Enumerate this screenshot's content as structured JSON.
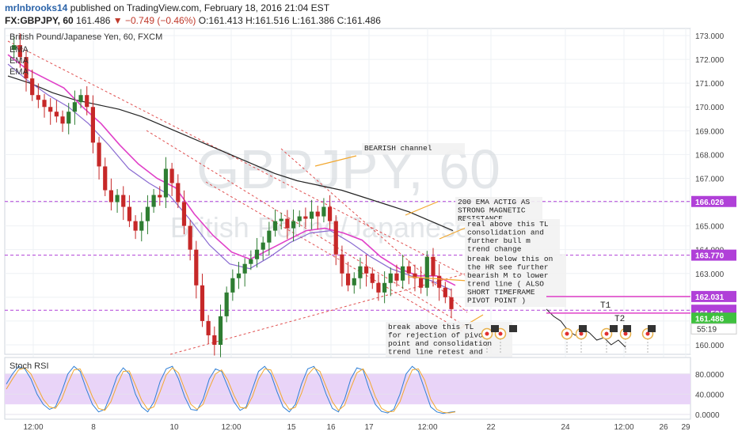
{
  "header": {
    "user": "mrlnbrooks14",
    "published": "published on TradingView.com, February 18, 2016 21:04 EST",
    "symbol": "FX:GBPJPY, 60",
    "last": "161.486",
    "change": "▼ −0.749 (−0.46%)",
    "open": "O:161.413",
    "high": "H:161.516",
    "low": "L:161.386",
    "close": "C:161.486"
  },
  "chart_title": "British Pound/Japanese Yen, 60, FXCM",
  "ema_labels": [
    "EMA",
    "EMA",
    "EMA"
  ],
  "watermark": {
    "line1": "GBPJPY, 60",
    "line2": "British Pound/Japanese Yen"
  },
  "colors": {
    "up": "#2e7d32",
    "down": "#c62828",
    "ema_black": "#222222",
    "ema_magenta": "#e040c8",
    "ema_purple": "#8a6bd1",
    "level": "#b040d8",
    "trendline": "#e05050",
    "arrow": "#f2a830",
    "price_tag": "#3ec03e",
    "rsi_band": "#e9d4f8"
  },
  "chart_data": [
    {
      "type": "candlestick",
      "title": "British Pound/Japanese Yen, 60, FXCM",
      "x_ticks": [
        "12:00",
        "8",
        "10",
        "12:00",
        "15",
        "16",
        "17",
        "12:00",
        "22",
        "24",
        "12:00",
        "26",
        "29"
      ],
      "y_ticks": [
        173.0,
        172.0,
        171.0,
        170.0,
        169.0,
        168.0,
        167.0,
        166.0,
        165.0,
        164.0,
        163.0,
        162.0,
        161.0,
        160.0
      ],
      "ylim": [
        159.6,
        173.3
      ],
      "grid": true,
      "levels": [
        {
          "value": 166.026,
          "label": "166.026"
        },
        {
          "value": 163.77,
          "label": "163.770"
        },
        {
          "value": 161.455,
          "label": "161.455"
        }
      ],
      "price_tags": [
        {
          "value": 162.031,
          "label": "162.031"
        },
        {
          "value": 161.531,
          "label": "161.531"
        },
        {
          "value": 161.486,
          "label": "161.486",
          "countdown": "55:19"
        }
      ],
      "targets": [
        {
          "label": "T1",
          "value": 161.9
        },
        {
          "label": "T2",
          "value": 161.4
        }
      ],
      "price_path": [
        172.4,
        172.6,
        172.1,
        171.2,
        170.5,
        170.3,
        170.0,
        169.8,
        169.6,
        169.3,
        169.8,
        170.2,
        170.5,
        170.0,
        168.5,
        167.5,
        166.5,
        166.0,
        166.3,
        165.8,
        165.2,
        164.8,
        165.2,
        165.8,
        166.3,
        166.2,
        167.4,
        166.8,
        166.0,
        165.0,
        164.0,
        162.5,
        161.0,
        160.4,
        160.0,
        161.2,
        162.2,
        162.8,
        163.0,
        163.4,
        163.6,
        164.0,
        164.3,
        164.8,
        165.2,
        165.3,
        164.9,
        165.2,
        165.4,
        165.3,
        165.6,
        165.4,
        165.8,
        165.2,
        163.8,
        163.0,
        162.5,
        162.8,
        163.3,
        163.0,
        162.6,
        162.2,
        162.6,
        163.0,
        162.7,
        163.3,
        163.0,
        162.8,
        162.4,
        163.7,
        162.9,
        162.4,
        162.0,
        161.5
      ],
      "ema_200": [
        171.3,
        171.0,
        170.6,
        170.3,
        170.1,
        169.9,
        169.6,
        169.2,
        168.8,
        168.4,
        168.0,
        167.6,
        167.2,
        166.9,
        166.7,
        166.5,
        166.2,
        165.9,
        165.6,
        165.2,
        164.8
      ],
      "ema_fast": [
        172.2,
        171.6,
        171.2,
        170.8,
        170.0,
        169.3,
        168.4,
        167.6,
        167.0,
        166.6,
        165.5,
        164.6,
        163.9,
        163.6,
        164.0,
        164.4,
        164.8,
        164.9,
        164.7,
        164.4,
        163.7,
        163.2,
        162.9,
        162.9,
        162.5
      ],
      "ema_mid": [
        171.8,
        171.1,
        170.5,
        170.0,
        169.3,
        168.4,
        167.4,
        166.8,
        166.3,
        165.3,
        164.2,
        163.4,
        163.2,
        163.7,
        164.3,
        164.7,
        164.8,
        164.3,
        163.7,
        163.2,
        162.9,
        162.7,
        162.3
      ],
      "projection": [
        161.5,
        161.2,
        161.0,
        160.6,
        160.4,
        160.7,
        160.5,
        160.2,
        160.3,
        160.0,
        160.2,
        159.9
      ]
    },
    {
      "type": "line",
      "title": "Stoch RSI",
      "y_ticks": [
        "80.0000",
        "40.0000",
        "0.0000"
      ],
      "ylim": [
        0,
        100
      ],
      "band": [
        20,
        80
      ],
      "series": [
        {
          "values": [
            60,
            80,
            95,
            90,
            70,
            40,
            20,
            10,
            15,
            45,
            80,
            95,
            85,
            50,
            20,
            5,
            10,
            40,
            75,
            92,
            80,
            40,
            15,
            5,
            25,
            65,
            90,
            95,
            70,
            35,
            10,
            8,
            30,
            70,
            90,
            85,
            55,
            25,
            8,
            15,
            50,
            85,
            95,
            80,
            45,
            15,
            5,
            20,
            60,
            90,
            95,
            75,
            40,
            12,
            5,
            30,
            70,
            92,
            88,
            50,
            20,
            6,
            3,
            10,
            40,
            80,
            95,
            85,
            50,
            15,
            5,
            2,
            4,
            6
          ]
        },
        {
          "values": [
            50,
            70,
            88,
            92,
            80,
            55,
            30,
            15,
            12,
            30,
            62,
            88,
            90,
            65,
            35,
            12,
            8,
            25,
            58,
            85,
            86,
            58,
            28,
            10,
            15,
            45,
            78,
            92,
            82,
            50,
            20,
            10,
            20,
            52,
            80,
            88,
            68,
            38,
            14,
            12,
            35,
            70,
            90,
            88,
            60,
            28,
            10,
            14,
            42,
            78,
            92,
            85,
            55,
            25,
            8,
            18,
            52,
            82,
            90,
            68,
            35,
            12,
            5,
            6,
            25,
            60,
            88,
            90,
            68,
            30,
            10,
            4,
            3,
            5
          ]
        }
      ]
    }
  ],
  "stoch_label": "Stoch RSI",
  "annotations": [
    {
      "id": "bearish",
      "lines": [
        "BEARISH channel"
      ]
    },
    {
      "id": "ema200",
      "lines": [
        "200 EMA ACTIG AS",
        "STRONG MAGNETIC",
        "RESISTANCE"
      ]
    },
    {
      "id": "realabove",
      "lines": [
        "real above this TL",
        "consolidation and",
        "further bull m",
        "trend change"
      ]
    },
    {
      "id": "breakbelow",
      "lines": [
        "break below this on",
        "the HR see further",
        "bearish M to lower",
        "trend line ( ALSO",
        "SHORT TIMEFRAME",
        "PIVOT POINT )"
      ]
    },
    {
      "id": "breakabove",
      "lines": [
        "break above this TL",
        "for rejection of pivot",
        "point and consolidation",
        "trend line retest and"
      ]
    }
  ]
}
